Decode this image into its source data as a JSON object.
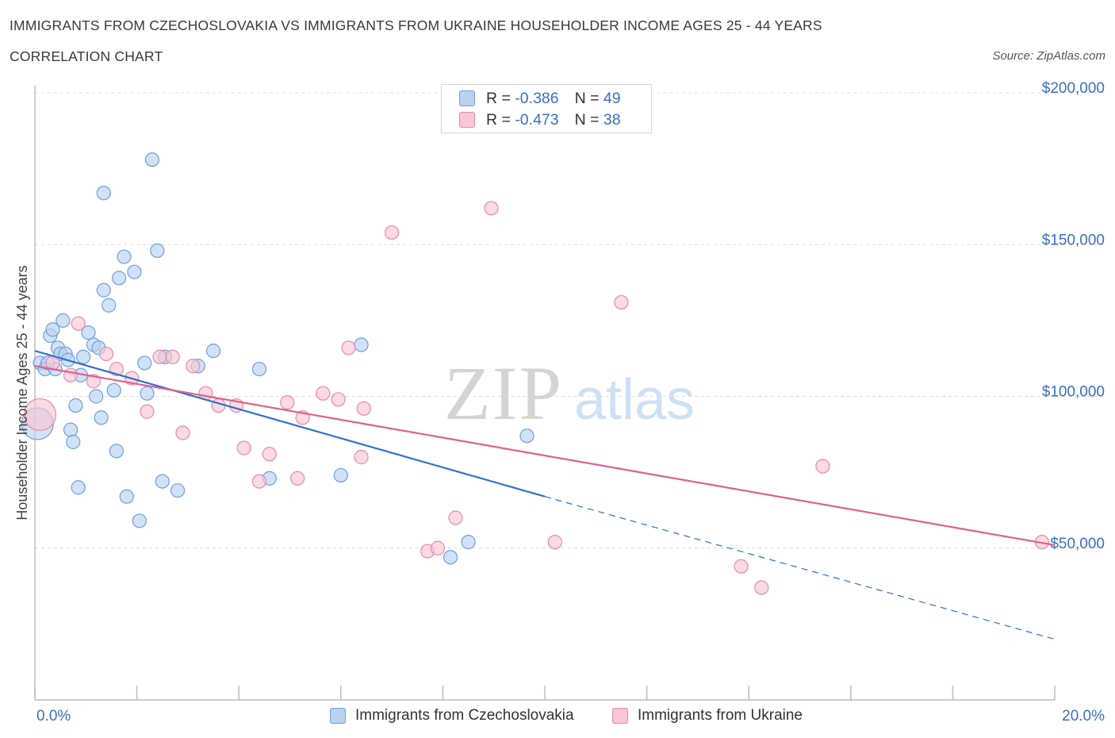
{
  "header": {
    "title": "IMMIGRANTS FROM CZECHOSLOVAKIA VS IMMIGRANTS FROM UKRAINE HOUSEHOLDER INCOME AGES 25 - 44 YEARS",
    "subtitle": "CORRELATION CHART",
    "source": "Source: ZipAtlas.com"
  },
  "watermark": {
    "zip": "ZIP",
    "atlas": "atlas"
  },
  "legend": {
    "czech": {
      "r_label": "R =",
      "r_value": "-0.386",
      "n_label": "N =",
      "n_value": "49"
    },
    "ukraine": {
      "r_label": "R =",
      "r_value": "-0.473",
      "n_label": "N =",
      "n_value": "38"
    }
  },
  "colors": {
    "czech_fill": "#b9d2f2",
    "czech_stroke": "#6e9fdc",
    "czech_line": "#2f6fd0",
    "ukraine_fill": "#f8c6d5",
    "ukraine_stroke": "#e98aa9",
    "ukraine_line": "#e0608d",
    "tick_label": "#3b6fc4"
  },
  "chart_data": {
    "type": "scatter",
    "title": "IMMIGRANTS FROM CZECHOSLOVAKIA VS IMMIGRANTS FROM UKRAINE HOUSEHOLDER INCOME AGES 25 - 44 YEARS",
    "subtitle": "CORRELATION CHART",
    "xlabel": "",
    "ylabel": "Householder Income Ages 25 - 44 years",
    "xlim": [
      0,
      20
    ],
    "ylim": [
      0,
      200000
    ],
    "x_tick_labels": [
      "0.0%",
      "20.0%"
    ],
    "y_ticks": [
      50000,
      100000,
      150000,
      200000
    ],
    "y_tick_labels": [
      "$50,000",
      "$100,000",
      "$150,000",
      "$200,000"
    ],
    "grid": "horizontal dashed",
    "legend_position": "top-center",
    "series": [
      {
        "name": "Immigrants from Czechoslovakia",
        "r": -0.386,
        "n": 49,
        "trend": {
          "x": [
            0.0,
            10.0
          ],
          "y": [
            115000,
            67000
          ],
          "extended_dashed_to": {
            "x": 20.0,
            "y": 20000
          }
        },
        "points": [
          [
            0.05,
            91000,
            "large"
          ],
          [
            0.1,
            111000
          ],
          [
            0.2,
            109000
          ],
          [
            0.3,
            120000
          ],
          [
            0.35,
            122000
          ],
          [
            0.4,
            109000
          ],
          [
            0.45,
            116000
          ],
          [
            0.5,
            114000
          ],
          [
            0.55,
            125000
          ],
          [
            0.6,
            114000
          ],
          [
            0.65,
            112000
          ],
          [
            0.7,
            89000
          ],
          [
            0.75,
            85000
          ],
          [
            0.8,
            97000
          ],
          [
            0.85,
            70000
          ],
          [
            0.9,
            107000
          ],
          [
            0.95,
            113000
          ],
          [
            1.05,
            121000
          ],
          [
            1.15,
            117000
          ],
          [
            1.2,
            100000
          ],
          [
            1.25,
            116000
          ],
          [
            1.3,
            93000
          ],
          [
            1.35,
            135000
          ],
          [
            1.35,
            167000
          ],
          [
            1.45,
            130000
          ],
          [
            1.55,
            102000
          ],
          [
            1.6,
            82000
          ],
          [
            1.65,
            139000
          ],
          [
            1.75,
            146000
          ],
          [
            1.8,
            67000
          ],
          [
            1.95,
            141000
          ],
          [
            2.05,
            59000
          ],
          [
            2.15,
            111000
          ],
          [
            2.2,
            101000
          ],
          [
            2.3,
            178000
          ],
          [
            2.4,
            148000
          ],
          [
            2.5,
            72000
          ],
          [
            2.55,
            113000
          ],
          [
            2.8,
            69000
          ],
          [
            3.2,
            110000
          ],
          [
            3.5,
            115000
          ],
          [
            4.4,
            109000
          ],
          [
            4.6,
            73000
          ],
          [
            6.0,
            74000
          ],
          [
            6.4,
            117000
          ],
          [
            8.15,
            47000
          ],
          [
            8.5,
            52000
          ],
          [
            9.65,
            87000
          ],
          [
            0.25,
            111000
          ]
        ]
      },
      {
        "name": "Immigrants from Ukraine",
        "r": -0.473,
        "n": 38,
        "trend": {
          "x": [
            0.0,
            20.0
          ],
          "y": [
            110000,
            51000
          ]
        },
        "points": [
          [
            0.1,
            94000,
            "large"
          ],
          [
            0.35,
            111000
          ],
          [
            0.7,
            107000
          ],
          [
            0.85,
            124000
          ],
          [
            1.15,
            105000
          ],
          [
            1.4,
            114000
          ],
          [
            1.6,
            109000
          ],
          [
            1.9,
            106000
          ],
          [
            2.2,
            95000
          ],
          [
            2.45,
            113000
          ],
          [
            2.7,
            113000
          ],
          [
            2.9,
            88000
          ],
          [
            3.1,
            110000
          ],
          [
            3.35,
            101000
          ],
          [
            3.6,
            97000
          ],
          [
            3.95,
            97000
          ],
          [
            4.1,
            83000
          ],
          [
            4.4,
            72000
          ],
          [
            4.6,
            81000
          ],
          [
            4.95,
            98000
          ],
          [
            5.15,
            73000
          ],
          [
            5.25,
            93000
          ],
          [
            5.65,
            101000
          ],
          [
            5.95,
            99000
          ],
          [
            6.15,
            116000
          ],
          [
            6.4,
            80000
          ],
          [
            6.45,
            96000
          ],
          [
            7.0,
            154000
          ],
          [
            7.7,
            49000
          ],
          [
            7.9,
            50000
          ],
          [
            8.25,
            60000
          ],
          [
            8.95,
            162000
          ],
          [
            10.2,
            52000
          ],
          [
            11.5,
            131000
          ],
          [
            13.85,
            44000
          ],
          [
            14.25,
            37000
          ],
          [
            15.45,
            77000
          ],
          [
            19.75,
            52000
          ]
        ]
      }
    ]
  },
  "bottom_legend": {
    "czech": "Immigrants from Czechoslovakia",
    "ukraine": "Immigrants from Ukraine"
  }
}
